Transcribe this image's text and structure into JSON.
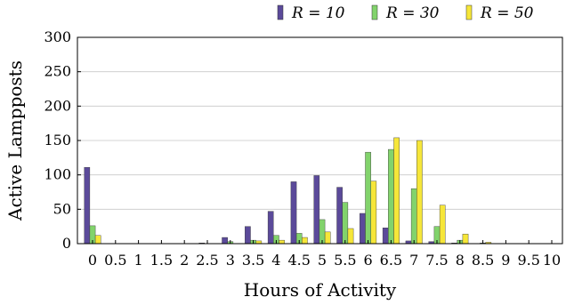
{
  "chart_data": {
    "type": "bar",
    "xlabel": "Hours of Activity",
    "ylabel": "Active Lampposts",
    "ylim": [
      0,
      300
    ],
    "yticks": [
      "0",
      "50",
      "100",
      "150",
      "200",
      "250",
      "300"
    ],
    "categories": [
      "0",
      "0.5",
      "1",
      "1.5",
      "2",
      "2.5",
      "3",
      "3.5",
      "4",
      "4.5",
      "5",
      "5.5",
      "6",
      "6.5",
      "7",
      "7.5",
      "8",
      "8.5",
      "9",
      "9.5",
      "10"
    ],
    "legend_position": "top-right",
    "grid": "horizontal",
    "series": [
      {
        "name": "R = 10",
        "color": "#5b4a9a",
        "values": [
          111,
          0,
          0,
          0,
          0,
          1,
          9,
          25,
          47,
          90,
          99,
          82,
          44,
          23,
          4,
          3,
          1,
          0,
          0,
          0,
          0
        ]
      },
      {
        "name": "R = 30",
        "color": "#82d36c",
        "values": [
          26,
          0,
          0,
          0,
          0,
          0,
          3,
          5,
          12,
          15,
          35,
          60,
          133,
          137,
          80,
          25,
          5,
          1,
          0,
          0,
          0
        ]
      },
      {
        "name": "R = 50",
        "color": "#f6e639",
        "values": [
          12,
          0,
          0,
          0,
          0,
          0,
          0,
          4,
          5,
          9,
          17,
          22,
          91,
          154,
          150,
          56,
          14,
          2,
          0,
          0,
          0
        ]
      }
    ]
  }
}
